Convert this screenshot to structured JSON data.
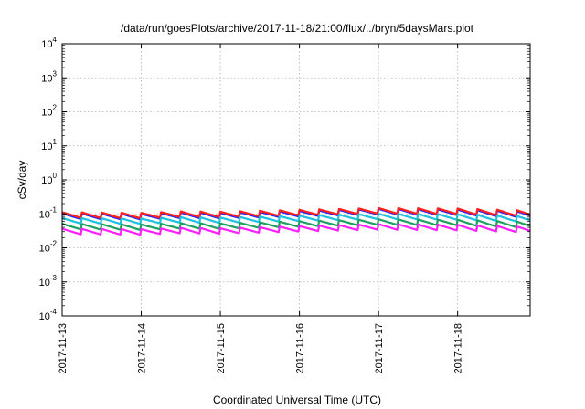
{
  "chart_data": {
    "type": "line",
    "title": "/data/run/goesPlots/archive/2017-11-18/21:00/flux/../bryn/5daysMars.plot",
    "xlabel": "Coordinated Universal Time (UTC)",
    "ylabel": "cSv/day",
    "yscale": "log",
    "ylim": [
      0.0001,
      10000
    ],
    "y_tick_labels": [
      {
        "value": 0.0001,
        "base": "10",
        "exp": "-4"
      },
      {
        "value": 0.001,
        "base": "10",
        "exp": "-3"
      },
      {
        "value": 0.01,
        "base": "10",
        "exp": "-2"
      },
      {
        "value": 0.1,
        "base": "10",
        "exp": "-1"
      },
      {
        "value": 1,
        "base": "10",
        "exp": "0"
      },
      {
        "value": 10,
        "base": "10",
        "exp": "1"
      },
      {
        "value": 100,
        "base": "10",
        "exp": "2"
      },
      {
        "value": 1000,
        "base": "10",
        "exp": "3"
      },
      {
        "value": 10000,
        "base": "10",
        "exp": "4"
      }
    ],
    "xlim": [
      "2017-11-13T00:00",
      "2017-11-18T22:00"
    ],
    "x_ticks": [
      "2017-11-13",
      "2017-11-14",
      "2017-11-15",
      "2017-11-16",
      "2017-11-17",
      "2017-11-18"
    ],
    "grid": true,
    "legend": "none",
    "sawtooth_period_hours": 6,
    "series": [
      {
        "color": "#2020ff",
        "x": [
          "2017-11-13",
          "2017-11-14",
          "2017-11-14T12:00",
          "2017-11-15",
          "2017-11-16",
          "2017-11-17",
          "2017-11-18",
          "2017-11-18T22:00"
        ],
        "values": [
          0.085,
          0.082,
          0.09,
          0.088,
          0.1,
          0.115,
          0.11,
          0.095
        ]
      },
      {
        "color": "#ff2020",
        "x": [
          "2017-11-13",
          "2017-11-14",
          "2017-11-14T12:00",
          "2017-11-15",
          "2017-11-16",
          "2017-11-17",
          "2017-11-18",
          "2017-11-18T22:00"
        ],
        "values": [
          0.092,
          0.088,
          0.097,
          0.095,
          0.108,
          0.122,
          0.118,
          0.102
        ]
      },
      {
        "color": "#20c0e0",
        "x": [
          "2017-11-13",
          "2017-11-14",
          "2017-11-14T12:00",
          "2017-11-15",
          "2017-11-16",
          "2017-11-17",
          "2017-11-18",
          "2017-11-18T22:00"
        ],
        "values": [
          0.062,
          0.06,
          0.066,
          0.064,
          0.073,
          0.083,
          0.08,
          0.069
        ]
      },
      {
        "color": "#20a060",
        "x": [
          "2017-11-13",
          "2017-11-14",
          "2017-11-14T12:00",
          "2017-11-15",
          "2017-11-16",
          "2017-11-17",
          "2017-11-18",
          "2017-11-18T22:00"
        ],
        "values": [
          0.042,
          0.04,
          0.044,
          0.043,
          0.05,
          0.057,
          0.055,
          0.047
        ]
      },
      {
        "color": "#ff20ff",
        "x": [
          "2017-11-13",
          "2017-11-14",
          "2017-11-14T12:00",
          "2017-11-15",
          "2017-11-16",
          "2017-11-17",
          "2017-11-18",
          "2017-11-18T22:00"
        ],
        "values": [
          0.03,
          0.029,
          0.032,
          0.031,
          0.036,
          0.041,
          0.039,
          0.034
        ]
      }
    ]
  }
}
